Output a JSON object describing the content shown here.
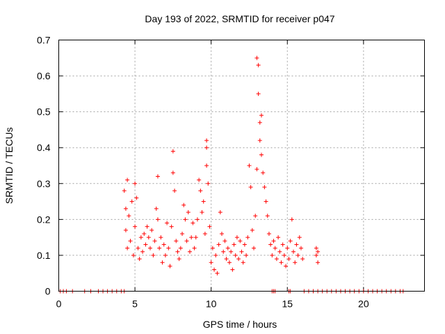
{
  "chart_data": {
    "type": "scatter",
    "title": "Day 193 of 2022, SRMTID for receiver p047",
    "xlabel": "GPS time / hours",
    "ylabel": "SRMTID / TECUs",
    "xlim": [
      0,
      24
    ],
    "ylim": [
      0,
      0.7
    ],
    "x_ticks": [
      0,
      5,
      10,
      15,
      20
    ],
    "y_ticks": [
      0,
      0.1,
      0.2,
      0.3,
      0.4,
      0.5,
      0.6,
      0.7
    ],
    "grid": true,
    "marker": "plus",
    "color": "#ff0000",
    "series": [
      {
        "name": "SRMTID",
        "points": [
          [
            0.1,
            0
          ],
          [
            0.3,
            0
          ],
          [
            0.5,
            0
          ],
          [
            0.9,
            0
          ],
          [
            1.7,
            0
          ],
          [
            2.1,
            0
          ],
          [
            2.6,
            0
          ],
          [
            2.9,
            0
          ],
          [
            3.2,
            0
          ],
          [
            3.5,
            0
          ],
          [
            3.8,
            0
          ],
          [
            4.1,
            0
          ],
          [
            4.3,
            0
          ],
          [
            4.3,
            0.28
          ],
          [
            4.4,
            0.23
          ],
          [
            4.4,
            0.17
          ],
          [
            4.5,
            0.31
          ],
          [
            4.5,
            0.12
          ],
          [
            4.6,
            0.21
          ],
          [
            4.7,
            0.14
          ],
          [
            4.8,
            0.25
          ],
          [
            4.9,
            0.1
          ],
          [
            5.0,
            0.3
          ],
          [
            5.0,
            0.18
          ],
          [
            5.1,
            0.26
          ],
          [
            5.2,
            0.12
          ],
          [
            5.3,
            0.09
          ],
          [
            5.4,
            0.15
          ],
          [
            5.5,
            0.11
          ],
          [
            5.6,
            0.16
          ],
          [
            5.7,
            0.13
          ],
          [
            5.8,
            0.18
          ],
          [
            5.9,
            0.15
          ],
          [
            6.0,
            0.12
          ],
          [
            6.1,
            0.17
          ],
          [
            6.2,
            0.1
          ],
          [
            6.3,
            0.14
          ],
          [
            6.4,
            0.23
          ],
          [
            6.5,
            0.32
          ],
          [
            6.5,
            0.2
          ],
          [
            6.6,
            0.12
          ],
          [
            6.7,
            0.15
          ],
          [
            6.8,
            0.08
          ],
          [
            6.9,
            0.13
          ],
          [
            7.0,
            0.1
          ],
          [
            7.1,
            0.19
          ],
          [
            7.2,
            0.12
          ],
          [
            7.3,
            0.07
          ],
          [
            7.4,
            0.18
          ],
          [
            7.5,
            0.39
          ],
          [
            7.5,
            0.33
          ],
          [
            7.6,
            0.28
          ],
          [
            7.7,
            0.14
          ],
          [
            7.8,
            0.11
          ],
          [
            7.9,
            0.09
          ],
          [
            8.0,
            0.12
          ],
          [
            8.1,
            0.16
          ],
          [
            8.2,
            0.24
          ],
          [
            8.3,
            0.2
          ],
          [
            8.4,
            0.14
          ],
          [
            8.5,
            0.22
          ],
          [
            8.6,
            0.11
          ],
          [
            8.7,
            0.15
          ],
          [
            8.8,
            0.19
          ],
          [
            8.9,
            0.12
          ],
          [
            9.0,
            0.15
          ],
          [
            9.1,
            0.2
          ],
          [
            9.2,
            0.31
          ],
          [
            9.3,
            0.28
          ],
          [
            9.4,
            0.22
          ],
          [
            9.5,
            0.25
          ],
          [
            9.6,
            0.16
          ],
          [
            9.7,
            0.42
          ],
          [
            9.7,
            0.4
          ],
          [
            9.7,
            0.35
          ],
          [
            9.8,
            0.3
          ],
          [
            9.9,
            0.18
          ],
          [
            10.0,
            0.08
          ],
          [
            10.1,
            0.12
          ],
          [
            10.2,
            0.06
          ],
          [
            10.3,
            0.1
          ],
          [
            10.4,
            0.05
          ],
          [
            10.5,
            0.13
          ],
          [
            10.6,
            0.22
          ],
          [
            10.7,
            0.16
          ],
          [
            10.8,
            0.11
          ],
          [
            10.9,
            0.14
          ],
          [
            11.0,
            0.09
          ],
          [
            11.1,
            0.12
          ],
          [
            11.2,
            0.08
          ],
          [
            11.3,
            0.11
          ],
          [
            11.4,
            0.06
          ],
          [
            11.5,
            0.13
          ],
          [
            11.6,
            0.1
          ],
          [
            11.7,
            0.15
          ],
          [
            11.8,
            0.09
          ],
          [
            11.9,
            0.14
          ],
          [
            12.0,
            0.11
          ],
          [
            12.1,
            0.08
          ],
          [
            12.2,
            0.13
          ],
          [
            12.3,
            0.1
          ],
          [
            12.4,
            0.15
          ],
          [
            12.5,
            0.35
          ],
          [
            12.6,
            0.29
          ],
          [
            12.7,
            0.17
          ],
          [
            12.8,
            0.12
          ],
          [
            12.9,
            0.21
          ],
          [
            13.0,
            0.34
          ],
          [
            13.0,
            0.65
          ],
          [
            13.1,
            0.63
          ],
          [
            13.1,
            0.55
          ],
          [
            13.2,
            0.47
          ],
          [
            13.2,
            0.42
          ],
          [
            13.3,
            0.49
          ],
          [
            13.3,
            0.38
          ],
          [
            13.4,
            0.33
          ],
          [
            13.5,
            0.29
          ],
          [
            13.6,
            0.25
          ],
          [
            13.7,
            0.21
          ],
          [
            13.8,
            0.16
          ],
          [
            13.9,
            0.13
          ],
          [
            14.0,
            0.1
          ],
          [
            14.1,
            0.14
          ],
          [
            14.2,
            0.12
          ],
          [
            14.3,
            0.09
          ],
          [
            14.4,
            0.15
          ],
          [
            14.5,
            0.11
          ],
          [
            14.6,
            0.08
          ],
          [
            14.7,
            0.13
          ],
          [
            14.8,
            0.1
          ],
          [
            14.9,
            0.07
          ],
          [
            15.0,
            0.12
          ],
          [
            15.1,
            0.09
          ],
          [
            15.2,
            0.14
          ],
          [
            15.3,
            0.2
          ],
          [
            15.4,
            0.11
          ],
          [
            15.5,
            0.08
          ],
          [
            15.6,
            0.13
          ],
          [
            15.7,
            0.1
          ],
          [
            15.8,
            0.15
          ],
          [
            15.9,
            0.12
          ],
          [
            16.0,
            0.09
          ],
          [
            16.9,
            0.12
          ],
          [
            16.9,
            0.1
          ],
          [
            17.0,
            0.08
          ],
          [
            17.0,
            0.11
          ],
          [
            14.0,
            0
          ],
          [
            14.1,
            0
          ],
          [
            14.2,
            0
          ],
          [
            15.1,
            0
          ],
          [
            15.2,
            0
          ],
          [
            16.1,
            0
          ],
          [
            16.4,
            0
          ],
          [
            16.7,
            0
          ],
          [
            17.0,
            0
          ],
          [
            17.3,
            0
          ],
          [
            17.6,
            0
          ],
          [
            17.9,
            0
          ],
          [
            18.2,
            0
          ],
          [
            18.5,
            0
          ],
          [
            18.8,
            0
          ],
          [
            19.1,
            0
          ],
          [
            19.4,
            0
          ],
          [
            19.7,
            0
          ],
          [
            20.0,
            0
          ],
          [
            20.3,
            0
          ],
          [
            20.6,
            0
          ],
          [
            20.9,
            0
          ],
          [
            21.2,
            0
          ],
          [
            21.5,
            0
          ],
          [
            21.8,
            0
          ],
          [
            22.1,
            0
          ],
          [
            22.4,
            0
          ],
          [
            22.6,
            0
          ]
        ]
      }
    ]
  }
}
